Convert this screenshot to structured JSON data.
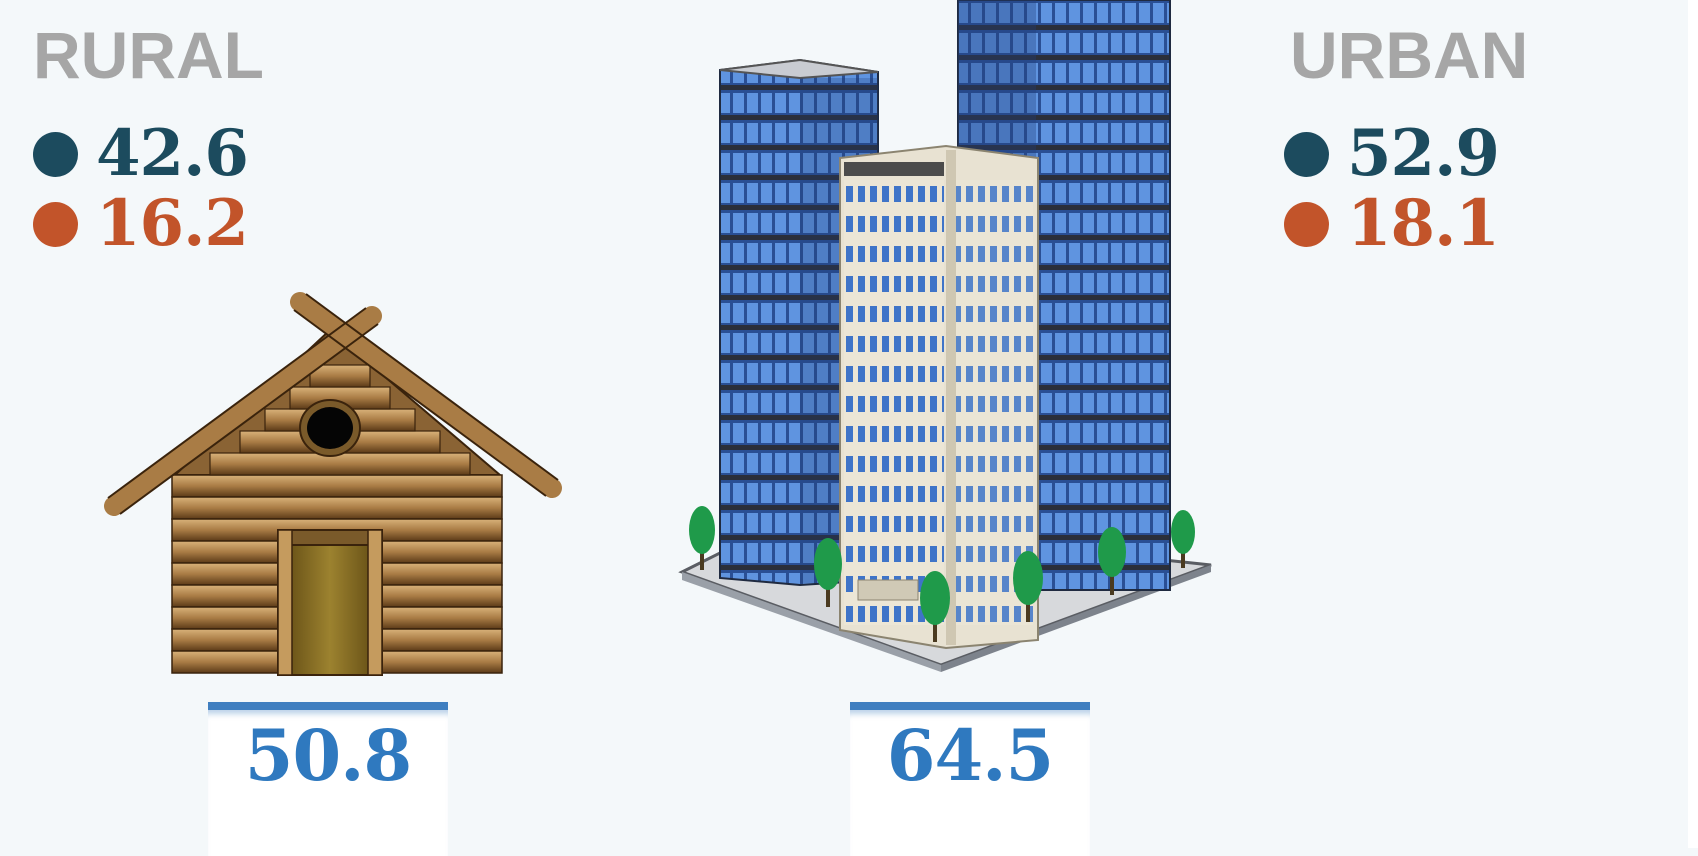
{
  "colors": {
    "series_dark": "#1c4b5e",
    "series_orange": "#c2542a",
    "heading_gray": "#a6a6a6",
    "box_text": "#2f79bf",
    "box_border": "#3f7fc0"
  },
  "rural": {
    "heading": "RURAL",
    "stat_dark": "42.6",
    "stat_orange": "16.2",
    "box_value": "50.8",
    "icon": "log-cabin-icon"
  },
  "urban": {
    "heading": "URBAN",
    "stat_dark": "52.9",
    "stat_orange": "18.1",
    "box_value": "64.5",
    "icon": "city-buildings-icon"
  }
}
